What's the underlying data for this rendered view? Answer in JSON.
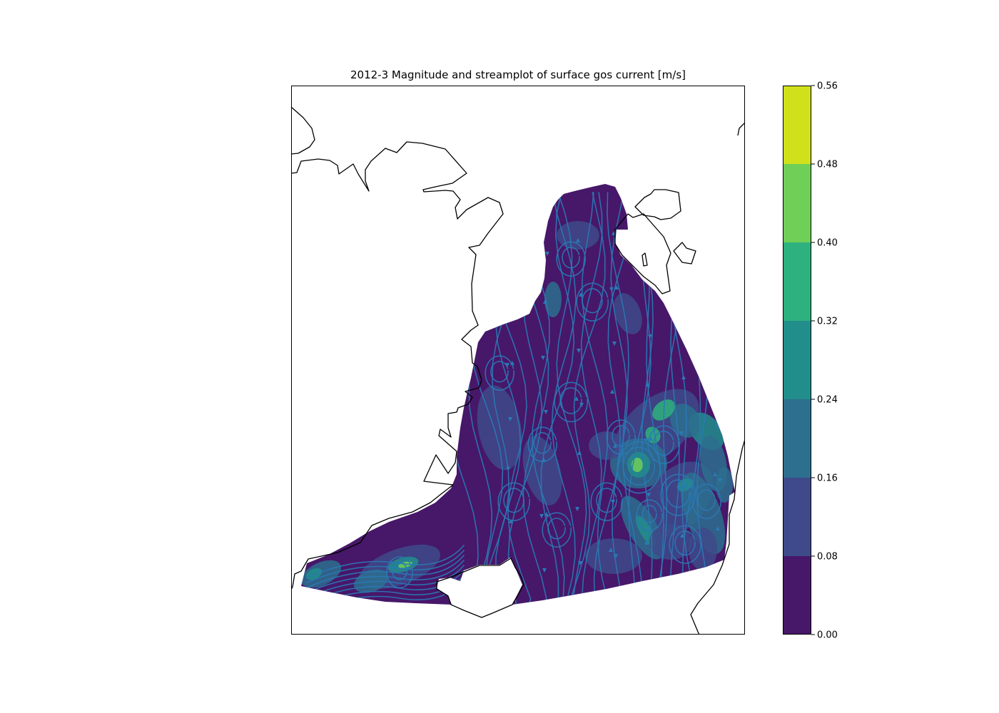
{
  "chart_data": {
    "type": "heatmap",
    "title": "2012-3 Magnitude and streamplot of surface gos current [m/s]",
    "colorbar": {
      "ticks": [
        "0.00",
        "0.08",
        "0.16",
        "0.24",
        "0.32",
        "0.40",
        "0.48",
        "0.56"
      ],
      "levels": [
        0.0,
        0.08,
        0.16,
        0.24,
        0.32,
        0.4,
        0.48,
        0.56
      ],
      "colors": [
        "#471769",
        "#3e4a89",
        "#2d6f8e",
        "#218e8c",
        "#2db17e",
        "#6fcf57",
        "#d0e11c"
      ],
      "range": [
        0.0,
        0.56
      ]
    },
    "grid": false,
    "legend": "colorbar-right",
    "colors": {
      "coastline": "#000000",
      "streamline": "#2a79b5",
      "background": "#ffffff"
    }
  }
}
